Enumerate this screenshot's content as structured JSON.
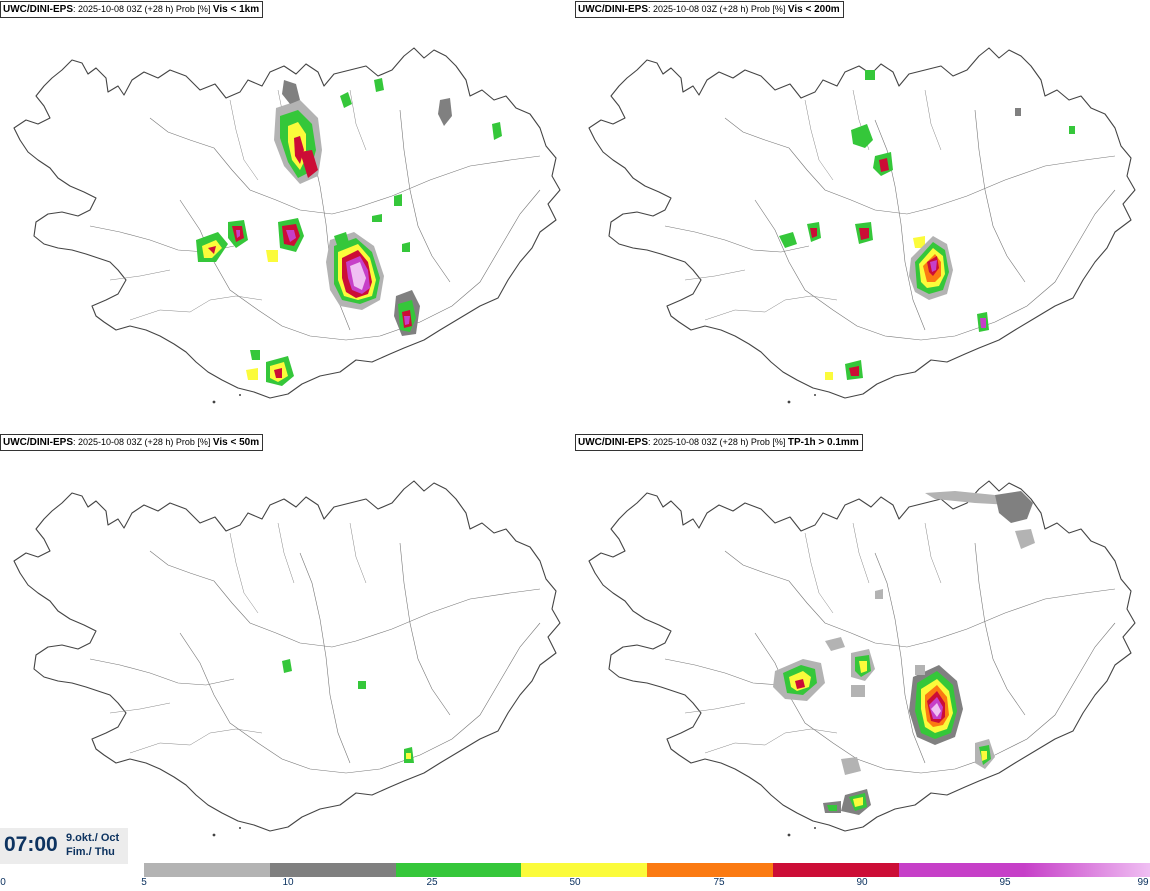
{
  "panels": [
    {
      "model": "UWC/DINI-EPS",
      "meta": "2025-10-08 03Z (+28 h) Prob [%]",
      "variable": "Vis < 1km"
    },
    {
      "model": "UWC/DINI-EPS",
      "meta": "2025-10-08 03Z (+28 h) Prob [%]",
      "variable": "Vis < 200m"
    },
    {
      "model": "UWC/DINI-EPS",
      "meta": "2025-10-08 03Z (+28 h) Prob [%]",
      "variable": "Vis < 50m"
    },
    {
      "model": "UWC/DINI-EPS",
      "meta": "2025-10-08 03Z (+28 h) Prob [%]",
      "variable": "TP-1h > 0.1mm"
    }
  ],
  "valid_time": {
    "hour": "07:00",
    "date_line1": "9.okt./ Oct",
    "date_line2": "Fim./ Thu"
  },
  "colorbar": {
    "ticks": [
      "0",
      "5",
      "10",
      "25",
      "50",
      "75",
      "90",
      "95",
      "99"
    ],
    "colors": [
      "#b3b3b3",
      "#7f7f7f",
      "#35c73a",
      "#fbfb3b",
      "#fb7a12",
      "#cc0d36",
      "#c63fc8",
      "#f0c0f3"
    ]
  },
  "map_colors": {
    "coast": "#444444",
    "gray_light": "#b3b3b3",
    "gray_dark": "#808080",
    "green": "#35c73a",
    "yellow": "#fbfb3b",
    "orange": "#fb7a12",
    "red": "#cc0d36",
    "magenta": "#c63fc8",
    "pink": "#f0c0f3"
  }
}
